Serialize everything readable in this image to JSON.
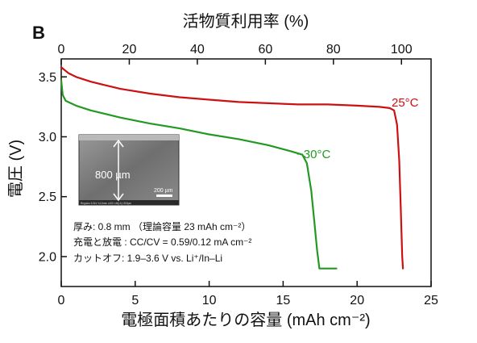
{
  "panel_label": "B",
  "notes": [
    "厚み: 0.8 mm （理論容量 23 mAh cm⁻²）",
    "充電と放電 : CC/CV = 0.59/0.12 mA cm⁻²",
    "カットオフ: 1.9–3.6 V vs. Li⁺/In–Li"
  ],
  "inset": {
    "thickness_label": "800 µm",
    "scalebar_label": "200 µm",
    "footer_text": "Regulus 5.0kV 14.6mm x100 LM(UL) 500µm"
  },
  "chart_data": {
    "type": "line",
    "xlabel": "電極面積あたりの容量 (mAh cm⁻²)",
    "ylabel": "電圧 (V)",
    "x2label": "活物質利用率 (%)",
    "xlim": [
      0,
      25
    ],
    "ylim": [
      1.75,
      3.65
    ],
    "x2lim": [
      0,
      108.7
    ],
    "xticks": [
      0,
      5,
      10,
      15,
      20,
      25
    ],
    "yticks": [
      2.0,
      2.5,
      3.0,
      3.5
    ],
    "x2ticks": [
      0,
      20,
      40,
      60,
      80,
      100
    ],
    "xtick_labels": [
      "0",
      "5",
      "10",
      "15",
      "20",
      "25"
    ],
    "ytick_labels": [
      "2.0",
      "2.5",
      "3.0",
      "3.5"
    ],
    "x2tick_labels": [
      "0",
      "20",
      "40",
      "60",
      "80",
      "100"
    ],
    "grid": false,
    "series": [
      {
        "name": "25°C",
        "color": "#cc1111",
        "points": [
          [
            0,
            3.58
          ],
          [
            0.5,
            3.53
          ],
          [
            1,
            3.5
          ],
          [
            2,
            3.46
          ],
          [
            3,
            3.43
          ],
          [
            4,
            3.4
          ],
          [
            6,
            3.36
          ],
          [
            8,
            3.33
          ],
          [
            10,
            3.31
          ],
          [
            12,
            3.29
          ],
          [
            14,
            3.28
          ],
          [
            16,
            3.27
          ],
          [
            18,
            3.27
          ],
          [
            20,
            3.26
          ],
          [
            21.5,
            3.25
          ],
          [
            22.2,
            3.24
          ],
          [
            22.5,
            3.22
          ],
          [
            22.7,
            3.1
          ],
          [
            22.85,
            2.8
          ],
          [
            22.95,
            2.4
          ],
          [
            23.05,
            2.0
          ],
          [
            23.1,
            1.9
          ]
        ]
      },
      {
        "name": "−30°C",
        "color": "#229922",
        "points": [
          [
            0,
            3.47
          ],
          [
            0.1,
            3.35
          ],
          [
            0.3,
            3.3
          ],
          [
            1,
            3.26
          ],
          [
            2,
            3.22
          ],
          [
            4,
            3.16
          ],
          [
            6,
            3.11
          ],
          [
            8,
            3.07
          ],
          [
            10,
            3.02
          ],
          [
            12,
            2.98
          ],
          [
            14,
            2.93
          ],
          [
            15.5,
            2.88
          ],
          [
            16.3,
            2.85
          ],
          [
            16.6,
            2.78
          ],
          [
            16.9,
            2.55
          ],
          [
            17.1,
            2.3
          ],
          [
            17.3,
            2.05
          ],
          [
            17.45,
            1.9
          ],
          [
            18.6,
            1.9
          ]
        ]
      }
    ]
  }
}
